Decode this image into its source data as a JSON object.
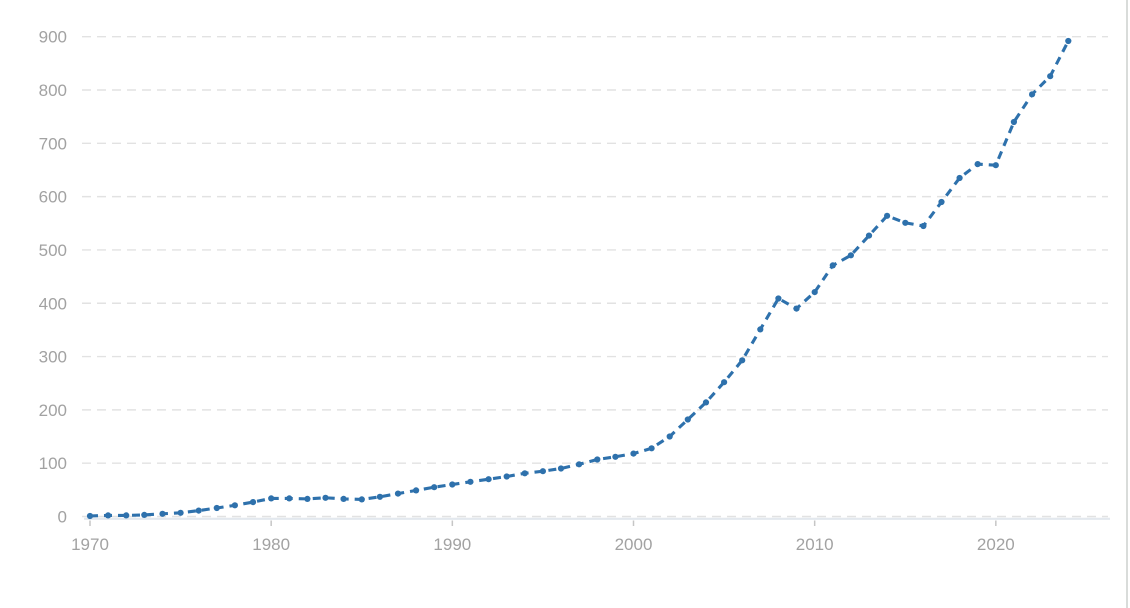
{
  "chart_data": {
    "type": "line",
    "title": "",
    "subtitle": "",
    "xlabel": "",
    "ylabel": "",
    "legend": "none",
    "grid": "horizontal-dashed",
    "line_style": "dashed-with-round-markers",
    "marker": "circle",
    "xlim": [
      1970,
      2024
    ],
    "ylim": [
      0,
      900
    ],
    "xticks": [
      1970,
      1980,
      1990,
      2000,
      2010,
      2020
    ],
    "yticks": [
      0,
      100,
      200,
      300,
      400,
      500,
      600,
      700,
      800,
      900
    ],
    "x": [
      1970,
      1971,
      1972,
      1973,
      1974,
      1975,
      1976,
      1977,
      1978,
      1979,
      1980,
      1981,
      1982,
      1983,
      1984,
      1985,
      1986,
      1987,
      1988,
      1989,
      1990,
      1991,
      1992,
      1993,
      1994,
      1995,
      1996,
      1997,
      1998,
      1999,
      2000,
      2001,
      2002,
      2003,
      2004,
      2005,
      2006,
      2007,
      2008,
      2009,
      2010,
      2011,
      2012,
      2013,
      2014,
      2015,
      2016,
      2017,
      2018,
      2019,
      2020,
      2021,
      2022,
      2023,
      2024
    ],
    "series": [
      {
        "name": "value",
        "values": [
          1,
          2,
          2,
          3,
          5,
          7,
          11,
          16,
          21,
          27,
          34,
          34,
          33,
          35,
          33,
          32,
          37,
          43,
          49,
          55,
          60,
          65,
          70,
          75,
          81,
          85,
          90,
          98,
          107,
          112,
          118,
          128,
          150,
          182,
          214,
          252,
          293,
          351,
          409,
          390,
          421,
          471,
          490,
          527,
          564,
          551,
          545,
          590,
          635,
          661,
          659,
          740,
          792,
          826,
          892
        ]
      }
    ]
  },
  "colors": {
    "line": "#2e71ac",
    "grid": "#e2e2e2",
    "axis_line": "#e3e8ee",
    "tick_mark": "#c6c6c6",
    "tick_label": "#a2a2a2",
    "right_border": "#d9dcda"
  }
}
